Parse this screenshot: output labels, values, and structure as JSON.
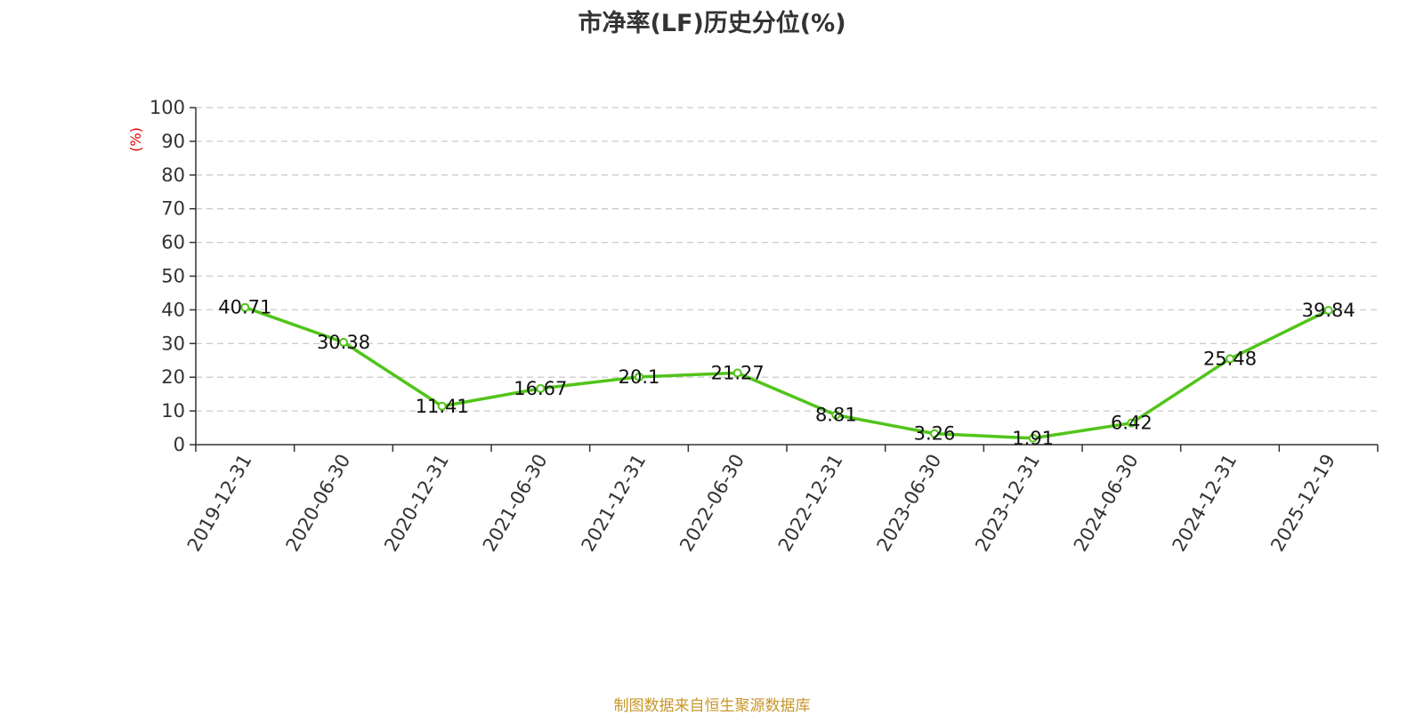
{
  "chart_data": {
    "type": "line",
    "title": "市净率(LF)历史分位(%)",
    "ylabel": "(%)",
    "xlabel": "",
    "categories": [
      "2019-12-31",
      "2020-06-30",
      "2020-12-31",
      "2021-06-30",
      "2021-12-31",
      "2022-06-30",
      "2022-12-31",
      "2023-06-30",
      "2023-12-31",
      "2024-06-30",
      "2024-12-31",
      "2025-12-19"
    ],
    "series": [
      {
        "values": [
          40.71,
          30.38,
          11.41,
          16.67,
          20.1,
          21.27,
          8.81,
          3.26,
          1.91,
          6.42,
          25.48,
          39.84
        ],
        "data_labels": [
          "40.71",
          "30.38",
          "11.41",
          "16.67",
          "20.1",
          "21.27",
          "8.81",
          "3.26",
          "1.91",
          "6.42",
          "25.48",
          "39.84"
        ]
      }
    ],
    "ylim": [
      0,
      100
    ],
    "yticks": [
      "0",
      "10",
      "20",
      "30",
      "40",
      "50",
      "60",
      "70",
      "80",
      "90",
      "100"
    ],
    "grid": "horizontal dashed",
    "legend": "none",
    "colors": {
      "line": "#52c41a",
      "ylabel": "#e00000",
      "grid": "#cccccc",
      "axis": "#333333"
    }
  },
  "footer": {
    "source": "制图数据来自恒生聚源数据库"
  }
}
